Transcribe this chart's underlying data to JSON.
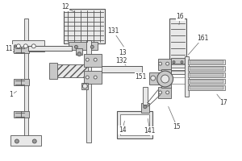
{
  "bg_color": "#ffffff",
  "line_color": "#555555",
  "fill_light": "#e8e8e8",
  "fill_medium": "#c8c8c8",
  "fill_dark": "#999999",
  "figsize": [
    3.0,
    2.0
  ],
  "dpi": 100,
  "label_fs": 5.5,
  "lw": 0.6,
  "labels": [
    [
      "1",
      13,
      118,
      22,
      112
    ],
    [
      "11",
      10,
      60,
      18,
      62
    ],
    [
      "12",
      80,
      8,
      95,
      16
    ],
    [
      "131",
      140,
      38,
      155,
      60
    ],
    [
      "13",
      152,
      65,
      158,
      72
    ],
    [
      "132",
      150,
      75,
      158,
      83
    ],
    [
      "151",
      175,
      95,
      168,
      89
    ],
    [
      "14",
      152,
      162,
      155,
      148
    ],
    [
      "141",
      186,
      163,
      183,
      145
    ],
    [
      "15",
      220,
      158,
      208,
      130
    ],
    [
      "16",
      224,
      20,
      222,
      33
    ],
    [
      "161",
      252,
      47,
      232,
      70
    ],
    [
      "17",
      278,
      128,
      268,
      115
    ]
  ]
}
